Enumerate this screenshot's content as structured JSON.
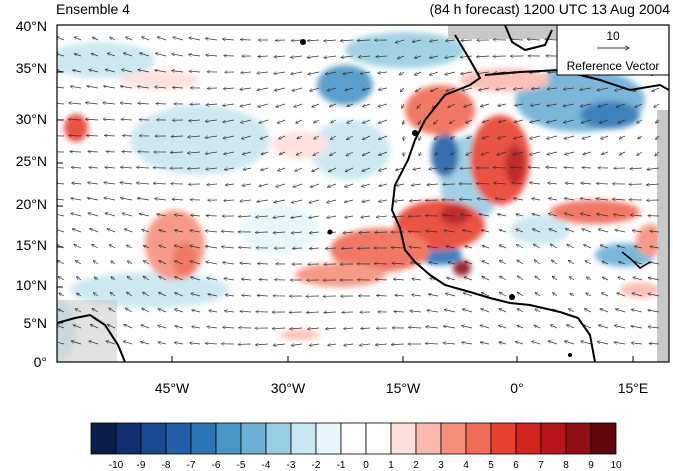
{
  "header": {
    "left_title": "Ensemble 4",
    "right_title": "(84 h forecast) 1200 UTC 13 Aug 2004"
  },
  "map": {
    "lat_labels": [
      "40°N",
      "35°N",
      "30°N",
      "25°N",
      "20°N",
      "15°N",
      "10°N",
      "5°N",
      "0°"
    ],
    "lon_labels": [
      "45°W",
      "30°W",
      "15°W",
      "0°",
      "15°E"
    ],
    "reference_vector": {
      "magnitude": "10",
      "label": "Reference Vector"
    },
    "colors": {
      "land_boundary": "#000000",
      "missing": "#c8c8c8",
      "vector": "#333333"
    }
  },
  "colorbar": {
    "colors": [
      "#0b1e4a",
      "#102f6f",
      "#1a4a90",
      "#2160a8",
      "#2b75b6",
      "#4a95c8",
      "#6cb0d6",
      "#97cde2",
      "#c7e6f0",
      "#e6f6fb",
      "#ffffff",
      "#ffffff",
      "#fde0dd",
      "#fbb9ad",
      "#f6907b",
      "#f06b54",
      "#e8412f",
      "#d3231e",
      "#b71518",
      "#8f0f13",
      "#5f070a"
    ],
    "labels": [
      "-10",
      "-9",
      "-8",
      "-7",
      "-6",
      "-5",
      "-4",
      "-3",
      "-2",
      "-1",
      "0",
      "1",
      "2",
      "3",
      "4",
      "5",
      "6",
      "7",
      "8",
      "9",
      "10"
    ]
  }
}
